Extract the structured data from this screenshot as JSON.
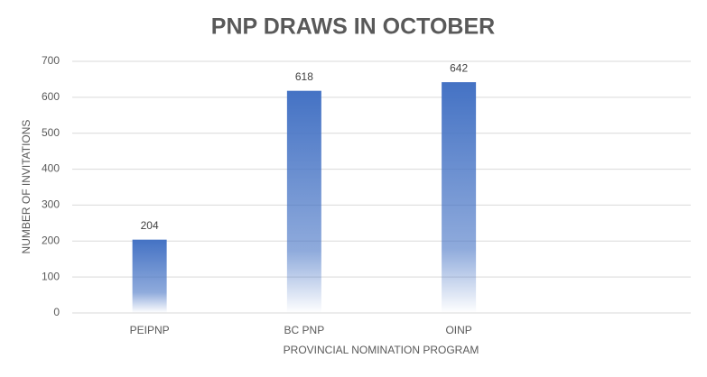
{
  "chart_data": {
    "type": "bar",
    "title": "PNP DRAWS IN OCTOBER",
    "x_label": "PROVINCIAL NOMINATION PROGRAM",
    "y_label": "NUMBER OF INVITATIONS",
    "categories": [
      "PEIPNP",
      "BC PNP",
      "OINP",
      null
    ],
    "values": [
      204,
      618,
      642,
      null
    ],
    "color": "#4472c4",
    "ylim": [
      0,
      700
    ],
    "yticks": [
      0,
      100,
      200,
      300,
      400,
      500,
      600,
      700
    ],
    "grid": true,
    "data_labels": true
  }
}
